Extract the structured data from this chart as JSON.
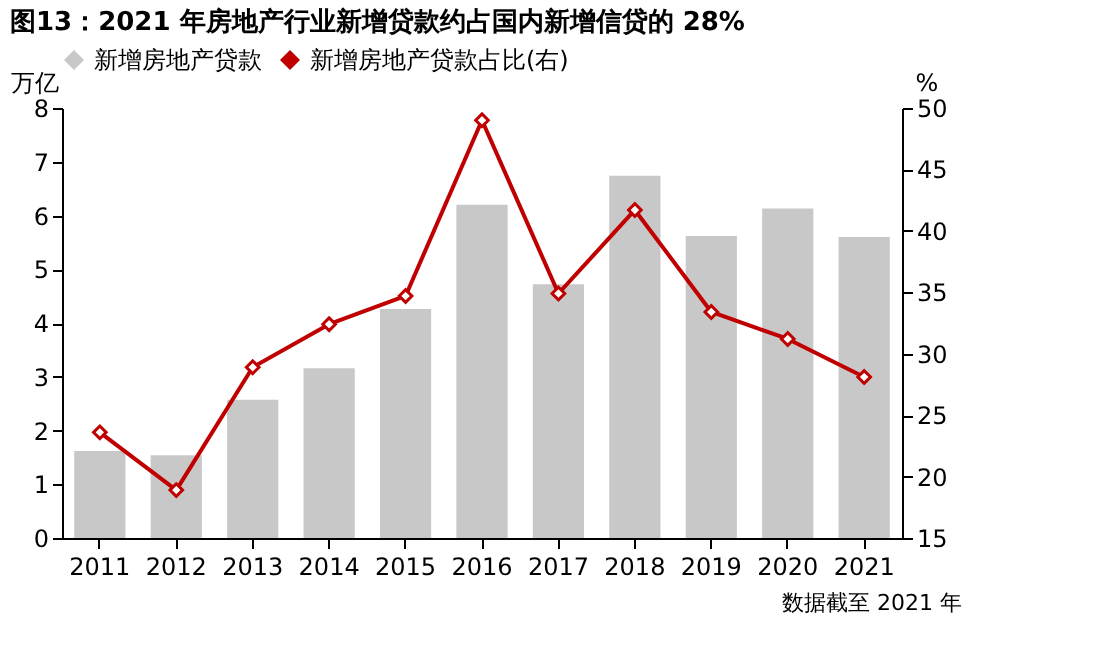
{
  "chart_data": {
    "type": "bar",
    "title": "图13：2021 年房地产行业新增贷款约占国内新增信贷的 28%",
    "categories": [
      "2011",
      "2012",
      "2013",
      "2014",
      "2015",
      "2016",
      "2017",
      "2018",
      "2019",
      "2020",
      "2021"
    ],
    "series": [
      {
        "name": "新增房地产贷款",
        "color": "#c8c8c8",
        "values": [
          1.62,
          1.54,
          2.57,
          3.16,
          4.26,
          6.2,
          4.72,
          6.74,
          5.62,
          6.13,
          5.6
        ]
      },
      {
        "name": "新增房地产贷款占比(右)",
        "type": "line",
        "axis": "y2",
        "color": "#c00000",
        "marker": "diamond",
        "values": [
          23.6,
          18.9,
          28.9,
          32.4,
          34.7,
          49.0,
          34.9,
          41.7,
          33.4,
          31.2,
          28.1
        ]
      }
    ],
    "ylabel": "万亿",
    "y2label": "%",
    "ylim": [
      0,
      8
    ],
    "yticks": [
      0,
      1,
      2,
      3,
      4,
      5,
      6,
      7,
      8
    ],
    "y2lim": [
      15,
      50
    ],
    "y2ticks": [
      15,
      20,
      25,
      30,
      35,
      40,
      45,
      50
    ],
    "legend": "top",
    "grid": false,
    "annotations": [
      "数据截至 2021 年"
    ]
  }
}
